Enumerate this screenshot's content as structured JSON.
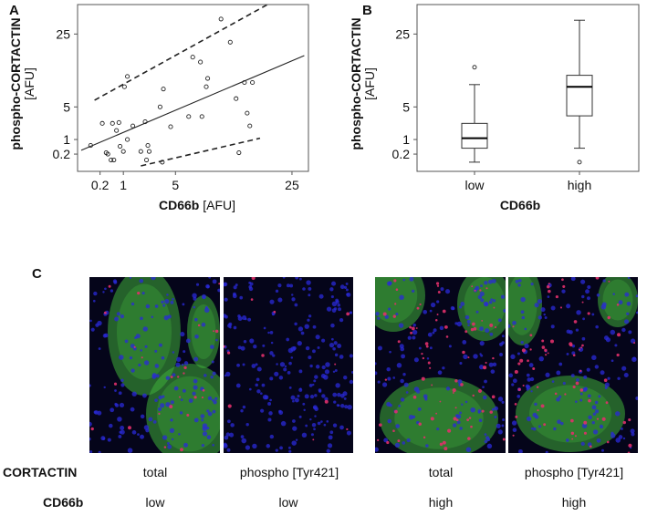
{
  "panelA": {
    "label": "A",
    "ylabel": "phospho-CORTACTIN",
    "yunit": "[AFU]",
    "xlabel": "CD66b",
    "xunit": "[AFU]"
  },
  "panelB": {
    "label": "B",
    "ylabel": "phospho-CORTACTIN",
    "yunit": "[AFU]",
    "xlabel": "CD66b"
  },
  "panelC": {
    "label": "C",
    "rows": [
      {
        "head": "CORTACTIN",
        "cells": [
          "total",
          "phospho [Tyr421]",
          "total",
          "phospho [Tyr421]"
        ]
      },
      {
        "head": "CD66b",
        "cells": [
          "low",
          "low",
          "high",
          "high"
        ]
      }
    ],
    "images": [
      {
        "caption": "CORTACTIN total, CD66b low",
        "green": "high",
        "red": "low"
      },
      {
        "caption": "phospho CORTACTIN, CD66b low",
        "green": "low",
        "red": "low"
      },
      {
        "caption": "CORTACTIN total, CD66b high",
        "green": "high",
        "red": "high"
      },
      {
        "caption": "phospho CORTACTIN, CD66b high",
        "green": "high",
        "red": "high"
      }
    ],
    "colors": {
      "nuclei": "#2a2ad8",
      "green": "#3fae3a",
      "red": "#e0306a"
    }
  },
  "chart_data": [
    {
      "type": "scatter",
      "panel": "A",
      "title": "",
      "xlabel": "CD66b [AFU]",
      "ylabel": "phospho-CORTACTIN [AFU]",
      "scale": "square-root",
      "xticks": [
        0.2,
        1,
        5,
        25
      ],
      "yticks": [
        0.2,
        1,
        5,
        25
      ],
      "xlim": [
        0,
        30
      ],
      "ylim": [
        0,
        40
      ],
      "points": [
        {
          "x": 0.05,
          "y": 0.6
        },
        {
          "x": 0.25,
          "y": 2.6
        },
        {
          "x": 0.35,
          "y": 0.25
        },
        {
          "x": 0.4,
          "y": 0.2
        },
        {
          "x": 0.5,
          "y": 0.05
        },
        {
          "x": 0.55,
          "y": 2.6
        },
        {
          "x": 0.6,
          "y": 0.05
        },
        {
          "x": 0.7,
          "y": 1.8
        },
        {
          "x": 0.8,
          "y": 2.7
        },
        {
          "x": 0.85,
          "y": 0.55
        },
        {
          "x": 1.0,
          "y": 0.3
        },
        {
          "x": 1.05,
          "y": 9.0
        },
        {
          "x": 1.2,
          "y": 1.0
        },
        {
          "x": 1.2,
          "y": 11.5
        },
        {
          "x": 1.5,
          "y": 2.3
        },
        {
          "x": 2.0,
          "y": 0.3
        },
        {
          "x": 2.3,
          "y": 2.8
        },
        {
          "x": 2.4,
          "y": 0.05
        },
        {
          "x": 2.5,
          "y": 0.6
        },
        {
          "x": 2.6,
          "y": 0.3
        },
        {
          "x": 3.5,
          "y": 5.0
        },
        {
          "x": 3.7,
          "y": 0.02
        },
        {
          "x": 3.8,
          "y": 8.5
        },
        {
          "x": 4.5,
          "y": 2.2
        },
        {
          "x": 6.5,
          "y": 3.5
        },
        {
          "x": 7.0,
          "y": 17.0
        },
        {
          "x": 8.0,
          "y": 15.5
        },
        {
          "x": 8.2,
          "y": 3.5
        },
        {
          "x": 8.8,
          "y": 9.0
        },
        {
          "x": 9.0,
          "y": 11.0
        },
        {
          "x": 11.0,
          "y": 31.0
        },
        {
          "x": 12.5,
          "y": 22.0
        },
        {
          "x": 13.5,
          "y": 6.5
        },
        {
          "x": 14.0,
          "y": 0.25
        },
        {
          "x": 15.0,
          "y": 10.0
        },
        {
          "x": 15.5,
          "y": 4.0
        },
        {
          "x": 16.0,
          "y": 2.3
        },
        {
          "x": 16.5,
          "y": 10.0
        }
      ],
      "fit_line": [
        {
          "x": 0,
          "y": 0.35
        },
        {
          "x": 28,
          "y": 17.5
        }
      ],
      "ci_upper": [
        {
          "x": 0.1,
          "y": 6.2
        },
        {
          "x": 20,
          "y": 38
        }
      ],
      "ci_lower": [
        {
          "x": 2.0,
          "y": 0.0
        },
        {
          "x": 18,
          "y": 1.1
        }
      ]
    },
    {
      "type": "box",
      "panel": "B",
      "title": "",
      "xlabel": "CD66b",
      "ylabel": "phospho-CORTACTIN [AFU]",
      "scale": "square-root",
      "categories": [
        "low",
        "high"
      ],
      "yticks": [
        0.2,
        1,
        5,
        25
      ],
      "ylim": [
        0,
        40
      ],
      "boxes": [
        {
          "name": "low",
          "whisker_low": 0.02,
          "q1": 0.45,
          "median": 1.1,
          "q3": 2.6,
          "whisker_high": 9.5,
          "outliers": [
            14.0
          ]
        },
        {
          "name": "high",
          "whisker_low": 0.45,
          "q1": 3.6,
          "median": 9.0,
          "q3": 11.8,
          "whisker_high": 30.5,
          "outliers": [
            0.02
          ]
        }
      ]
    }
  ]
}
